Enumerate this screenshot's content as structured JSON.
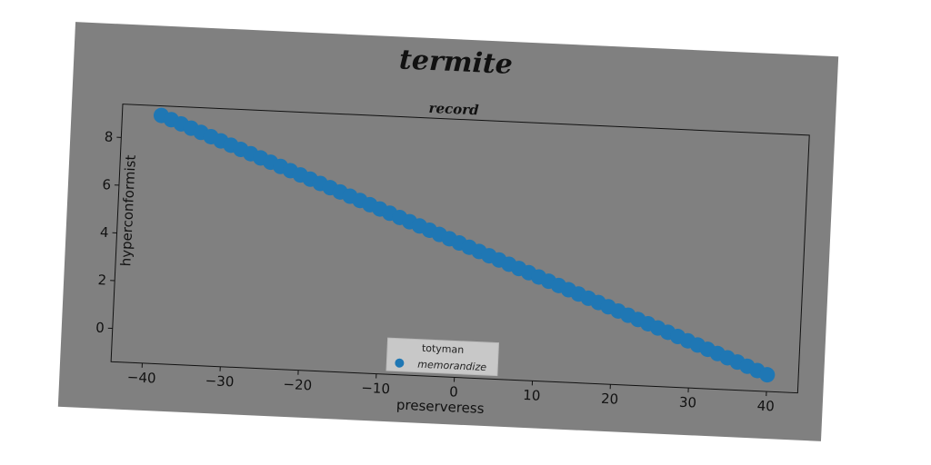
{
  "chart_data": {
    "type": "scatter",
    "title": "termite",
    "subtitle": "record",
    "xlabel": "preserveress",
    "ylabel": "hyperconformist",
    "xlim": [
      -44,
      44
    ],
    "ylim": [
      -1.4,
      9.4
    ],
    "xticks": [
      -40,
      -30,
      -20,
      -10,
      0,
      10,
      20,
      30,
      40
    ],
    "yticks": [
      0,
      2,
      4,
      6,
      8
    ],
    "grid": false,
    "legend": {
      "title": "totyman",
      "placement": "bottom-center"
    },
    "series": [
      {
        "name": "memorandize",
        "color": "#1f77b4",
        "x_start": -39,
        "x_end": 40,
        "x_step": 1.3,
        "y_start": 9.0,
        "y_end": -0.7
      }
    ]
  }
}
